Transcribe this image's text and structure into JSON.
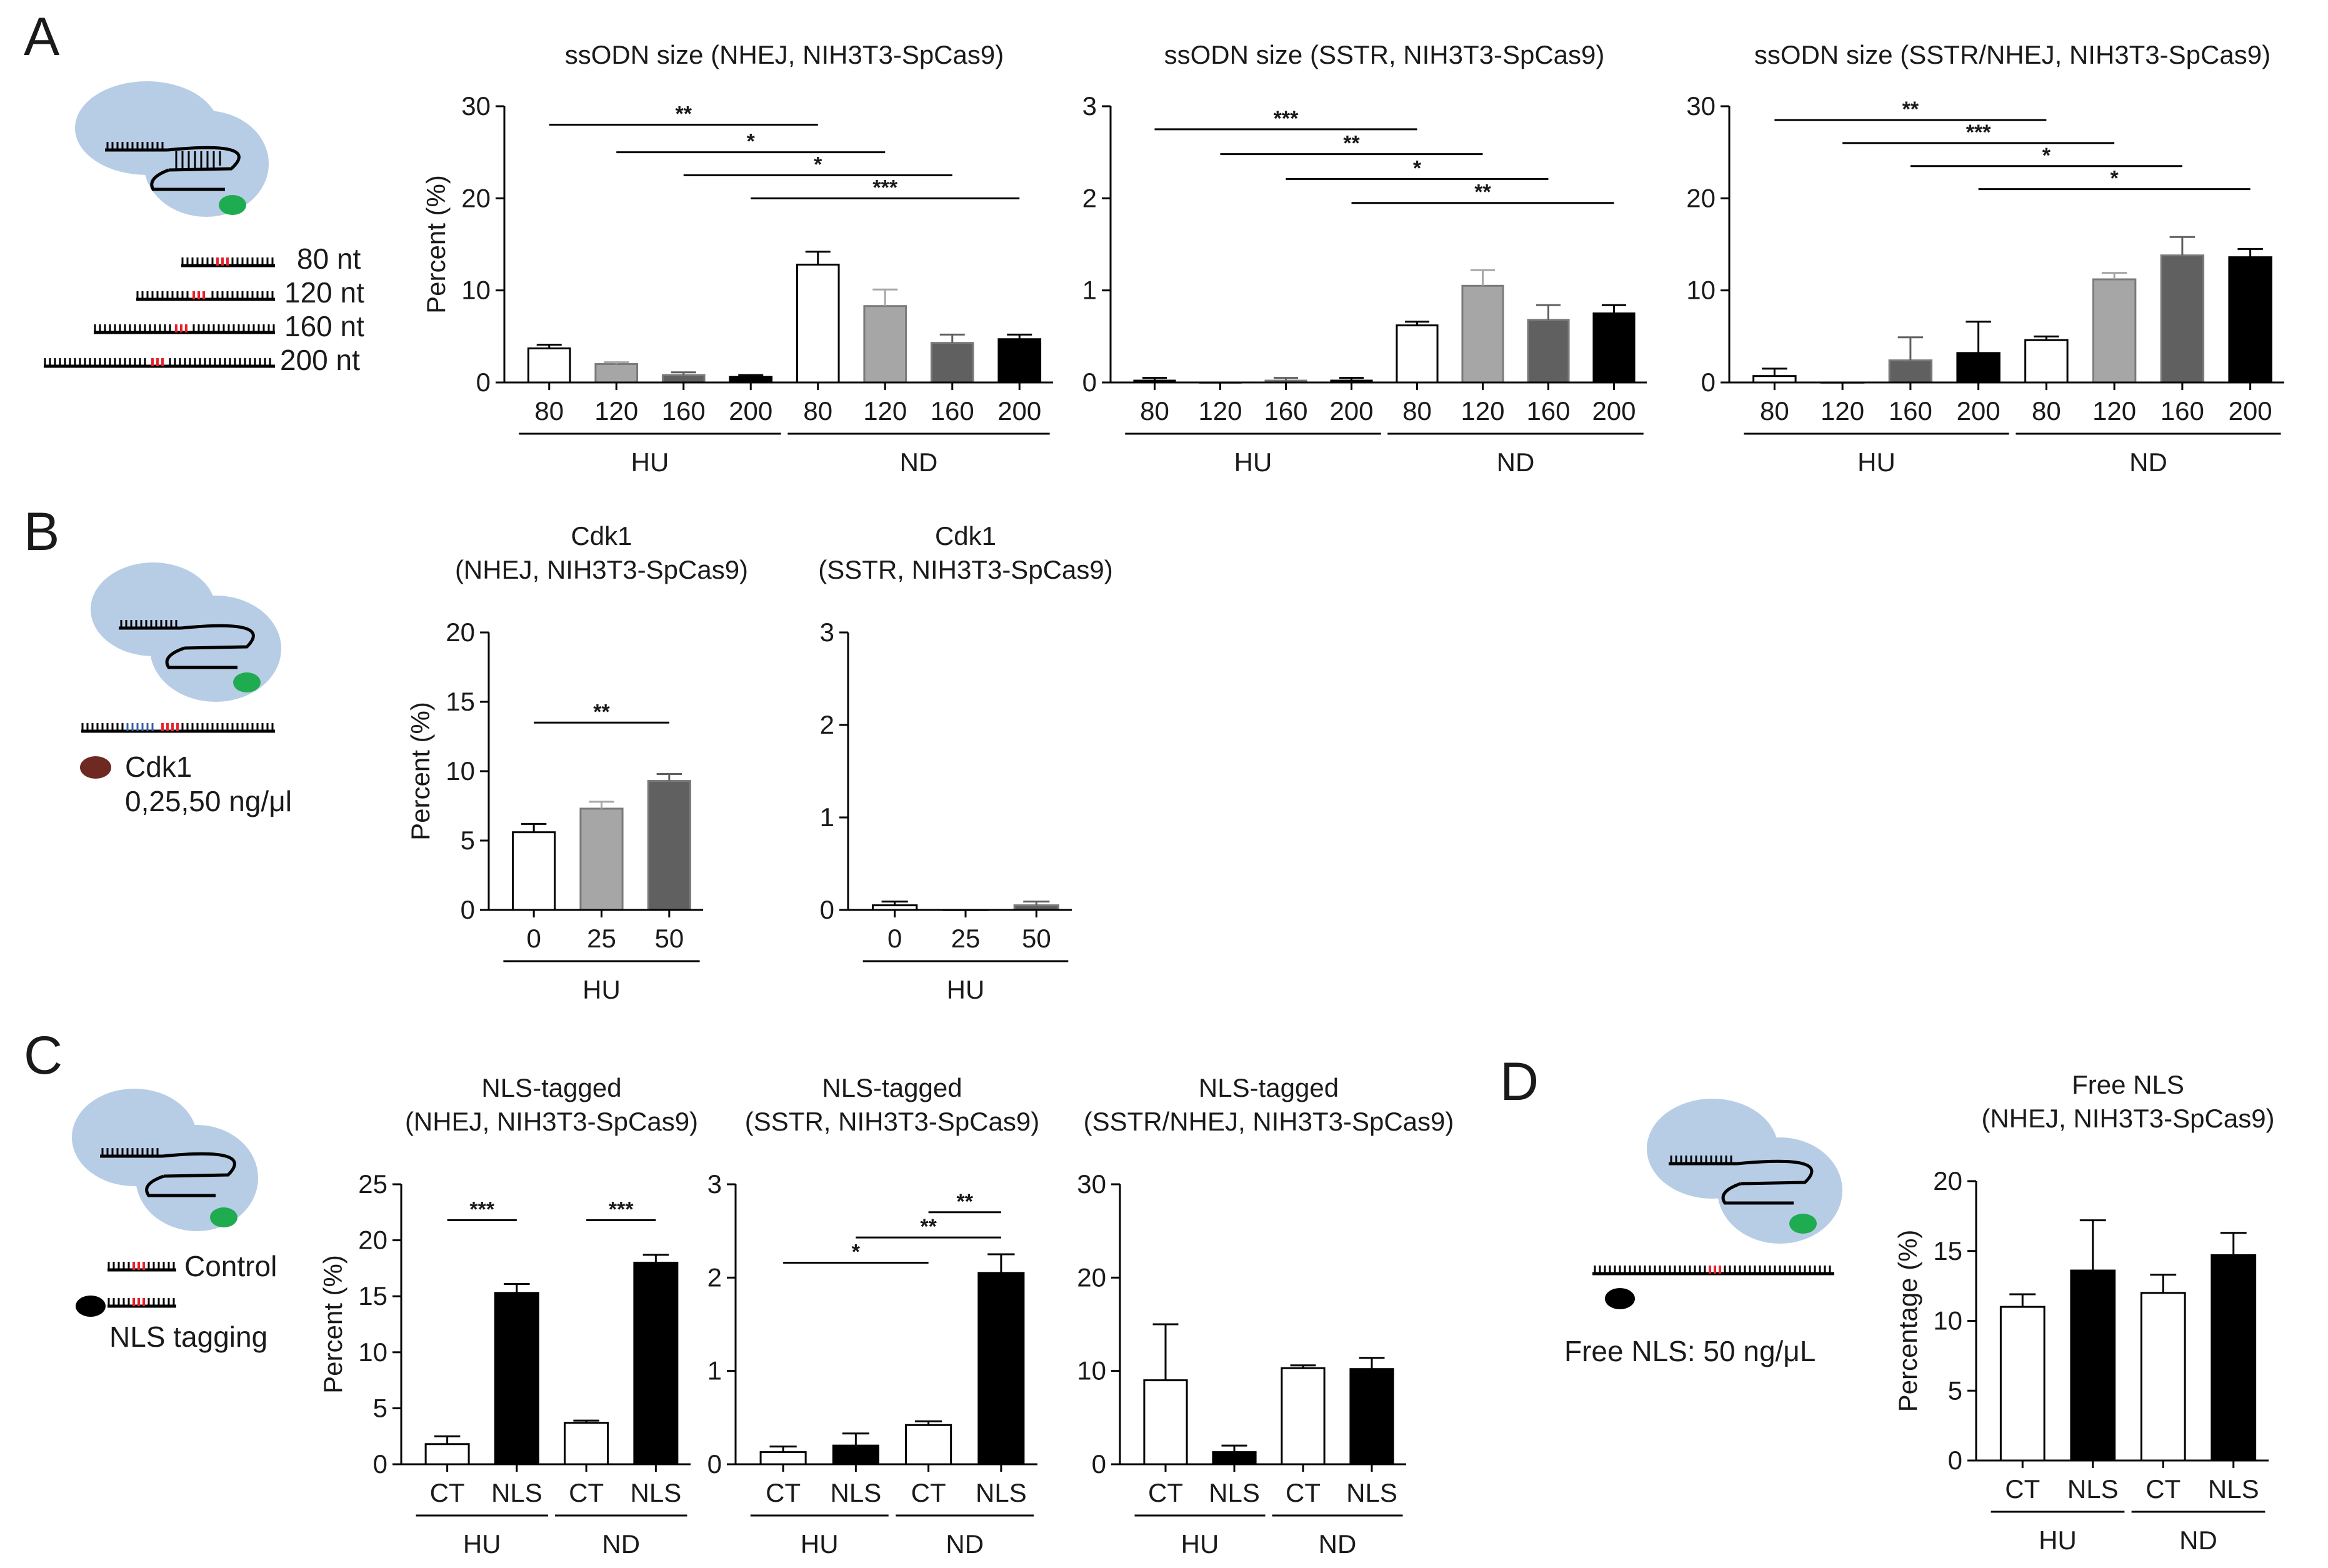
{
  "panels": [
    {
      "letter": "A"
    },
    {
      "letter": "B"
    },
    {
      "letter": "C"
    },
    {
      "letter": "D"
    }
  ],
  "illustrations": {
    "a_sizes": [
      "80 nt",
      "120 nt",
      "160 nt",
      "200 nt"
    ],
    "b_legend": [
      "Cdk1",
      "0,25,50 ng/μl"
    ],
    "c_legend": [
      "Control",
      "NLS tagging"
    ],
    "d_label": "Free NLS: 50 ng/μL"
  },
  "colors": {
    "white": "#ffffff",
    "light_gray": "#a6a6a6",
    "dark_gray": "#606060",
    "black": "#000000",
    "mid_gray": "#7a7a7a",
    "cell_blue": "#b7cde6",
    "gfp_green": "#1fab4f",
    "edit_red": "#e8202a",
    "cdk1_brown": "#6e2a22",
    "strand_blue": "#3a5fa8"
  },
  "chart_data": [
    {
      "id": "A1",
      "type": "bar",
      "title": [
        "ssODN size (NHEJ, NIH3T3-SpCas9)"
      ],
      "ylabel": "Percent (%)",
      "ylim": [
        0,
        30
      ],
      "yticks": [
        0,
        10,
        20,
        30
      ],
      "categories": [
        "80",
        "120",
        "160",
        "200",
        "80",
        "120",
        "160",
        "200"
      ],
      "values": [
        3.7,
        2.0,
        0.8,
        0.6,
        12.8,
        8.3,
        4.3,
        4.7
      ],
      "errors": [
        0.4,
        0.2,
        0.3,
        0.2,
        1.4,
        1.8,
        0.9,
        0.5
      ],
      "fills": [
        "white",
        "light_gray",
        "dark_gray",
        "black",
        "white",
        "light_gray",
        "dark_gray",
        "black"
      ],
      "groups": [
        {
          "label": "HU",
          "from": 0,
          "to": 3
        },
        {
          "label": "ND",
          "from": 4,
          "to": 7
        }
      ],
      "significance": [
        {
          "from": 0,
          "to": 4,
          "label": "**",
          "y": 28
        },
        {
          "from": 1,
          "to": 5,
          "label": "*",
          "y": 25
        },
        {
          "from": 2,
          "to": 6,
          "label": "*",
          "y": 22.5
        },
        {
          "from": 3,
          "to": 7,
          "label": "***",
          "y": 20
        }
      ]
    },
    {
      "id": "A2",
      "type": "bar",
      "title": [
        "ssODN size (SSTR, NIH3T3-SpCas9)"
      ],
      "ylabel": "",
      "ylim": [
        0,
        3
      ],
      "yticks": [
        0,
        1,
        2,
        3
      ],
      "categories": [
        "80",
        "120",
        "160",
        "200",
        "80",
        "120",
        "160",
        "200"
      ],
      "values": [
        0.02,
        0.0,
        0.02,
        0.02,
        0.62,
        1.05,
        0.68,
        0.75
      ],
      "errors": [
        0.03,
        0.0,
        0.03,
        0.03,
        0.04,
        0.17,
        0.16,
        0.09
      ],
      "fills": [
        "white",
        "light_gray",
        "dark_gray",
        "black",
        "white",
        "light_gray",
        "dark_gray",
        "black"
      ],
      "groups": [
        {
          "label": "HU",
          "from": 0,
          "to": 3
        },
        {
          "label": "ND",
          "from": 4,
          "to": 7
        }
      ],
      "significance": [
        {
          "from": 0,
          "to": 4,
          "label": "***",
          "y": 2.75
        },
        {
          "from": 1,
          "to": 5,
          "label": "**",
          "y": 2.48
        },
        {
          "from": 2,
          "to": 6,
          "label": "*",
          "y": 2.21
        },
        {
          "from": 3,
          "to": 7,
          "label": "**",
          "y": 1.95
        }
      ]
    },
    {
      "id": "A3",
      "type": "bar",
      "title": [
        "ssODN size (SSTR/NHEJ, NIH3T3-SpCas9)"
      ],
      "ylabel": "",
      "ylim": [
        0,
        30
      ],
      "yticks": [
        0,
        10,
        20,
        30
      ],
      "categories": [
        "80",
        "120",
        "160",
        "200",
        "80",
        "120",
        "160",
        "200"
      ],
      "values": [
        0.7,
        0.0,
        2.4,
        3.2,
        4.6,
        11.2,
        13.8,
        13.6
      ],
      "errors": [
        0.8,
        0.0,
        2.5,
        3.4,
        0.4,
        0.7,
        2.0,
        0.9
      ],
      "fills": [
        "white",
        "light_gray",
        "dark_gray",
        "black",
        "white",
        "light_gray",
        "dark_gray",
        "black"
      ],
      "groups": [
        {
          "label": "HU",
          "from": 0,
          "to": 3
        },
        {
          "label": "ND",
          "from": 4,
          "to": 7
        }
      ],
      "significance": [
        {
          "from": 0,
          "to": 4,
          "label": "**",
          "y": 28.5
        },
        {
          "from": 1,
          "to": 5,
          "label": "***",
          "y": 26
        },
        {
          "from": 2,
          "to": 6,
          "label": "*",
          "y": 23.5
        },
        {
          "from": 3,
          "to": 7,
          "label": "*",
          "y": 21
        }
      ]
    },
    {
      "id": "B1",
      "type": "bar",
      "title": [
        "Cdk1",
        "(NHEJ, NIH3T3-SpCas9)"
      ],
      "ylabel": "Percent (%)",
      "ylim": [
        0,
        20
      ],
      "yticks": [
        0,
        5,
        10,
        15,
        20
      ],
      "categories": [
        "0",
        "25",
        "50"
      ],
      "values": [
        5.6,
        7.3,
        9.3
      ],
      "errors": [
        0.6,
        0.5,
        0.5
      ],
      "fills": [
        "white",
        "light_gray",
        "dark_gray"
      ],
      "groups": [
        {
          "label": "HU",
          "from": 0,
          "to": 2
        }
      ],
      "significance": [
        {
          "from": 0,
          "to": 2,
          "label": "**",
          "y": 13.5
        }
      ]
    },
    {
      "id": "B2",
      "type": "bar",
      "title": [
        "Cdk1",
        "(SSTR, NIH3T3-SpCas9)"
      ],
      "ylabel": "",
      "ylim": [
        0,
        3
      ],
      "yticks": [
        0,
        1,
        2,
        3
      ],
      "categories": [
        "0",
        "25",
        "50"
      ],
      "values": [
        0.05,
        0.0,
        0.05
      ],
      "errors": [
        0.04,
        0.0,
        0.04
      ],
      "fills": [
        "white",
        "light_gray",
        "dark_gray"
      ],
      "groups": [
        {
          "label": "HU",
          "from": 0,
          "to": 2
        }
      ],
      "significance": []
    },
    {
      "id": "C1",
      "type": "bar",
      "title": [
        "NLS-tagged",
        "(NHEJ, NIH3T3-SpCas9)"
      ],
      "ylabel": "Percent (%)",
      "ylim": [
        0,
        25
      ],
      "yticks": [
        0,
        5,
        10,
        15,
        20,
        25
      ],
      "categories": [
        "CT",
        "NLS",
        "CT",
        "NLS"
      ],
      "values": [
        1.8,
        15.3,
        3.7,
        18.0
      ],
      "errors": [
        0.7,
        0.8,
        0.2,
        0.7
      ],
      "fills": [
        "white",
        "black",
        "white",
        "black"
      ],
      "groups": [
        {
          "label": "HU",
          "from": 0,
          "to": 1
        },
        {
          "label": "ND",
          "from": 2,
          "to": 3
        }
      ],
      "significance": [
        {
          "from": 0,
          "to": 1,
          "label": "***",
          "y": 21.8
        },
        {
          "from": 2,
          "to": 3,
          "label": "***",
          "y": 21.8
        }
      ]
    },
    {
      "id": "C2",
      "type": "bar",
      "title": [
        "NLS-tagged",
        "(SSTR, NIH3T3-SpCas9)"
      ],
      "ylabel": "",
      "ylim": [
        0,
        3
      ],
      "yticks": [
        0,
        1,
        2,
        3
      ],
      "categories": [
        "CT",
        "NLS",
        "CT",
        "NLS"
      ],
      "values": [
        0.13,
        0.2,
        0.42,
        2.05
      ],
      "errors": [
        0.06,
        0.13,
        0.04,
        0.2
      ],
      "fills": [
        "white",
        "black",
        "white",
        "black"
      ],
      "groups": [
        {
          "label": "HU",
          "from": 0,
          "to": 1
        },
        {
          "label": "ND",
          "from": 2,
          "to": 3
        }
      ],
      "significance": [
        {
          "from": 0,
          "to": 2,
          "label": "*",
          "y": 2.16
        },
        {
          "from": 1,
          "to": 3,
          "label": "**",
          "y": 2.43
        },
        {
          "from": 2,
          "to": 3,
          "label": "**",
          "y": 2.7
        }
      ]
    },
    {
      "id": "C3",
      "type": "bar",
      "title": [
        "NLS-tagged",
        "(SSTR/NHEJ, NIH3T3-SpCas9)"
      ],
      "ylabel": "",
      "ylim": [
        0,
        30
      ],
      "yticks": [
        0,
        10,
        20,
        30
      ],
      "categories": [
        "CT",
        "NLS",
        "CT",
        "NLS"
      ],
      "values": [
        9.0,
        1.3,
        10.3,
        10.2
      ],
      "errors": [
        6.0,
        0.7,
        0.3,
        1.2
      ],
      "fills": [
        "white",
        "black",
        "white",
        "black"
      ],
      "groups": [
        {
          "label": "HU",
          "from": 0,
          "to": 1
        },
        {
          "label": "ND",
          "from": 2,
          "to": 3
        }
      ],
      "significance": []
    },
    {
      "id": "D1",
      "type": "bar",
      "title": [
        "Free NLS",
        "(NHEJ, NIH3T3-SpCas9)"
      ],
      "ylabel": "Percentage (%)",
      "ylim": [
        0,
        20
      ],
      "yticks": [
        0,
        5,
        10,
        15,
        20
      ],
      "categories": [
        "CT",
        "NLS",
        "CT",
        "NLS"
      ],
      "values": [
        11.0,
        13.6,
        12.0,
        14.7
      ],
      "errors": [
        0.9,
        3.6,
        1.3,
        1.6
      ],
      "fills": [
        "white",
        "black",
        "white",
        "black"
      ],
      "groups": [
        {
          "label": "HU",
          "from": 0,
          "to": 1
        },
        {
          "label": "ND",
          "from": 2,
          "to": 3
        }
      ],
      "significance": []
    }
  ]
}
